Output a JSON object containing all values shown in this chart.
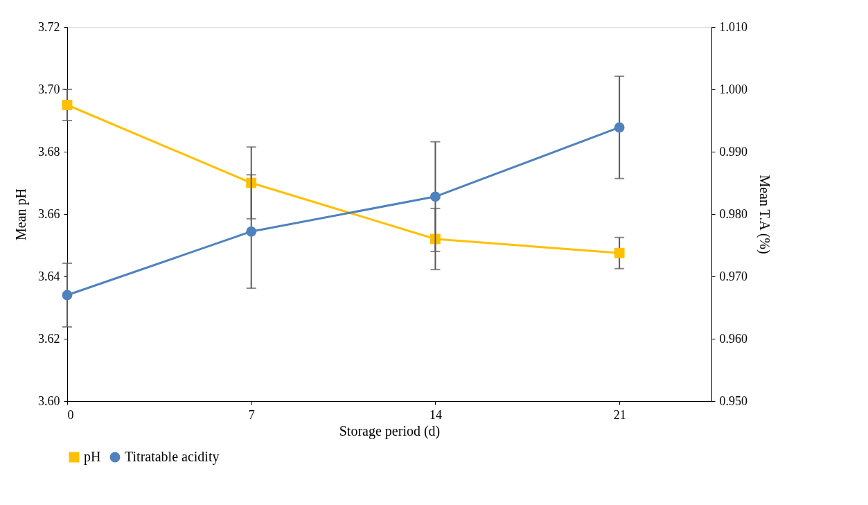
{
  "chart_data": {
    "type": "line",
    "xlabel": "Storage period (d)",
    "ylabel": "Mean pH",
    "y2label": "Mean T.A (%)",
    "x": [
      0,
      7,
      14,
      21
    ],
    "xlim": [
      0,
      24.5
    ],
    "xticks": [
      0,
      7,
      14,
      21
    ],
    "ylim": [
      3.6,
      3.72
    ],
    "yticks": [
      {
        "value": 3.6,
        "label": "3.60"
      },
      {
        "value": 3.62,
        "label": "3.62"
      },
      {
        "value": 3.64,
        "label": "3.64"
      },
      {
        "value": 3.66,
        "label": "3.66"
      },
      {
        "value": 3.68,
        "label": "3.68"
      },
      {
        "value": 3.7,
        "label": "3.70"
      },
      {
        "value": 3.72,
        "label": "3.72"
      }
    ],
    "y2lim": [
      0.95,
      1.01
    ],
    "y2ticks": [
      {
        "value": 0.95,
        "label": "0.950"
      },
      {
        "value": 0.96,
        "label": "0.960"
      },
      {
        "value": 0.97,
        "label": "0.970"
      },
      {
        "value": 0.98,
        "label": "0.980"
      },
      {
        "value": 0.99,
        "label": "0.990"
      },
      {
        "value": 1.0,
        "label": "1.000"
      },
      {
        "value": 1.01,
        "label": "1.010"
      }
    ],
    "series": [
      {
        "name": "pH",
        "color": "#ffc000",
        "marker": "square",
        "values": [
          3.695,
          3.67,
          3.652,
          3.6475
        ],
        "errors": [
          0.005,
          0.0115,
          0.0098,
          0.005
        ]
      },
      {
        "name": "Titratable acidity",
        "color": "#4f81bd",
        "marker": "circle",
        "axis": "y2",
        "values": [
          0.967,
          0.9772,
          0.9828,
          0.9939
        ],
        "errors": [
          0.0051,
          0.0091,
          0.0088,
          0.0082
        ]
      }
    ],
    "legend": "bottom",
    "grid": false,
    "line_style": "solid"
  }
}
